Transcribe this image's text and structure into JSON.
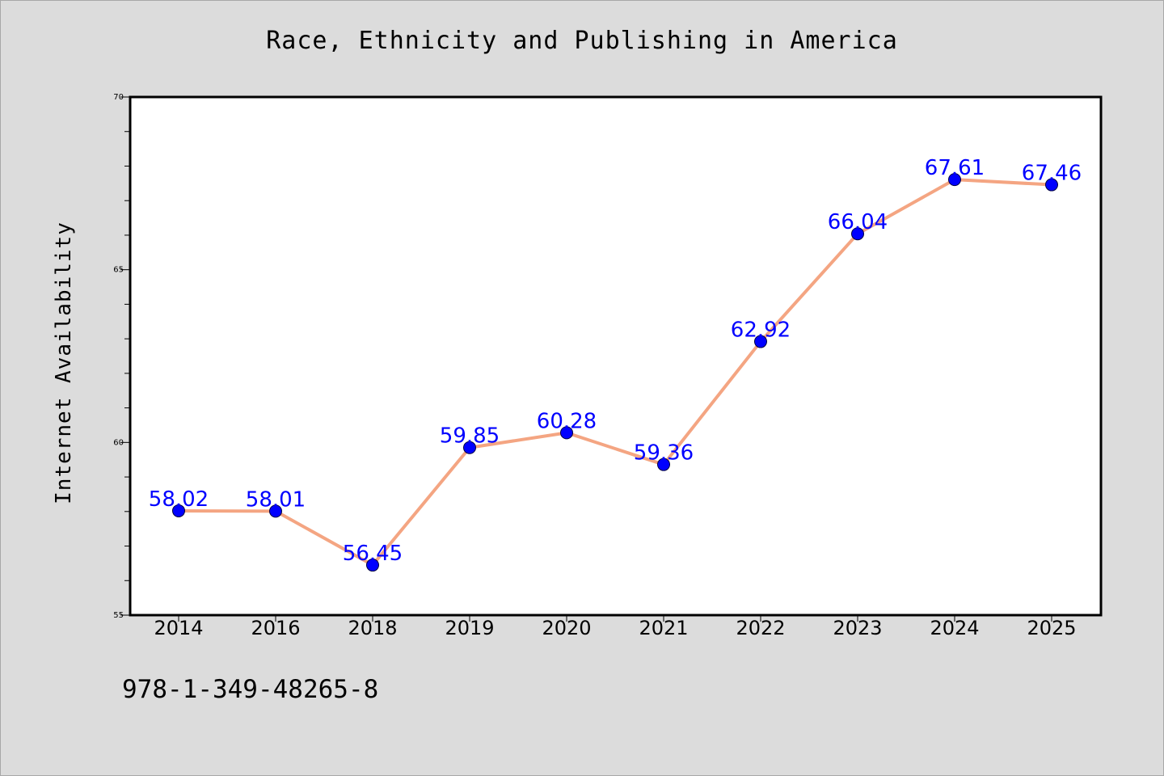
{
  "chart_data": {
    "type": "line",
    "title": "Race, Ethnicity and Publishing in America",
    "xlabel": "",
    "ylabel": "Internet Availability",
    "categories": [
      "2014",
      "2016",
      "2018",
      "2019",
      "2020",
      "2021",
      "2022",
      "2023",
      "2024",
      "2025"
    ],
    "series": [
      {
        "values": [
          58.02,
          58.01,
          56.45,
          59.85,
          60.28,
          59.36,
          62.92,
          66.04,
          67.61,
          67.46
        ],
        "labels": [
          "58.02",
          "58.01",
          "56.45",
          "59.85",
          "60.28",
          "59.36",
          "62.92",
          "66.04",
          "67.61",
          "67.46"
        ],
        "line_color": "#f4a582",
        "marker_color": "#0000ff",
        "label_color": "#0000ff"
      }
    ],
    "ylim": [
      55,
      70
    ],
    "yticks": [
      55,
      60,
      65,
      70
    ],
    "ytick_labels": [
      "55",
      "60",
      "65",
      "70"
    ],
    "grid": false,
    "legend": "none"
  },
  "footer": {
    "code": "978-1-349-48265-8"
  },
  "colors": {
    "background": "#dcdcdc",
    "plot_background": "#ffffff"
  }
}
